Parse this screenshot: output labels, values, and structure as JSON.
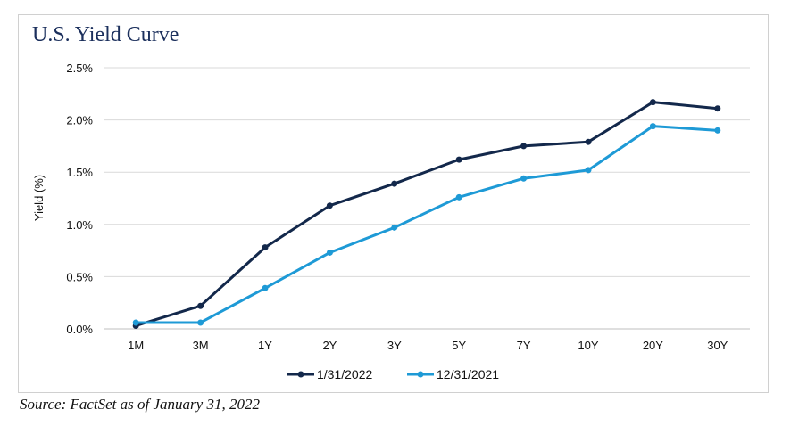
{
  "title": "U.S. Yield Curve",
  "source": "Source: FactSet as of January 31, 2022",
  "colors": {
    "series_0": "#13284b",
    "series_1": "#1e9ad6",
    "grid": "#d9d9d9",
    "title": "#1b2f5c"
  },
  "chart_data": {
    "type": "line",
    "title": "U.S. Yield Curve",
    "xlabel": "",
    "ylabel": "Yield (%)",
    "categories": [
      "1M",
      "3M",
      "1Y",
      "2Y",
      "3Y",
      "5Y",
      "7Y",
      "10Y",
      "20Y",
      "30Y"
    ],
    "ylim": [
      0,
      2.5
    ],
    "yticks": [
      "0.0%",
      "0.5%",
      "1.0%",
      "1.5%",
      "2.0%",
      "2.5%"
    ],
    "ytick_values": [
      0,
      0.5,
      1.0,
      1.5,
      2.0,
      2.5
    ],
    "grid": true,
    "legend_position": "bottom",
    "series": [
      {
        "name": "1/31/2022",
        "values": [
          0.03,
          0.22,
          0.78,
          1.18,
          1.39,
          1.62,
          1.75,
          1.79,
          2.17,
          2.11
        ]
      },
      {
        "name": "12/31/2021",
        "values": [
          0.06,
          0.06,
          0.39,
          0.73,
          0.97,
          1.26,
          1.44,
          1.52,
          1.94,
          1.9
        ]
      }
    ]
  }
}
